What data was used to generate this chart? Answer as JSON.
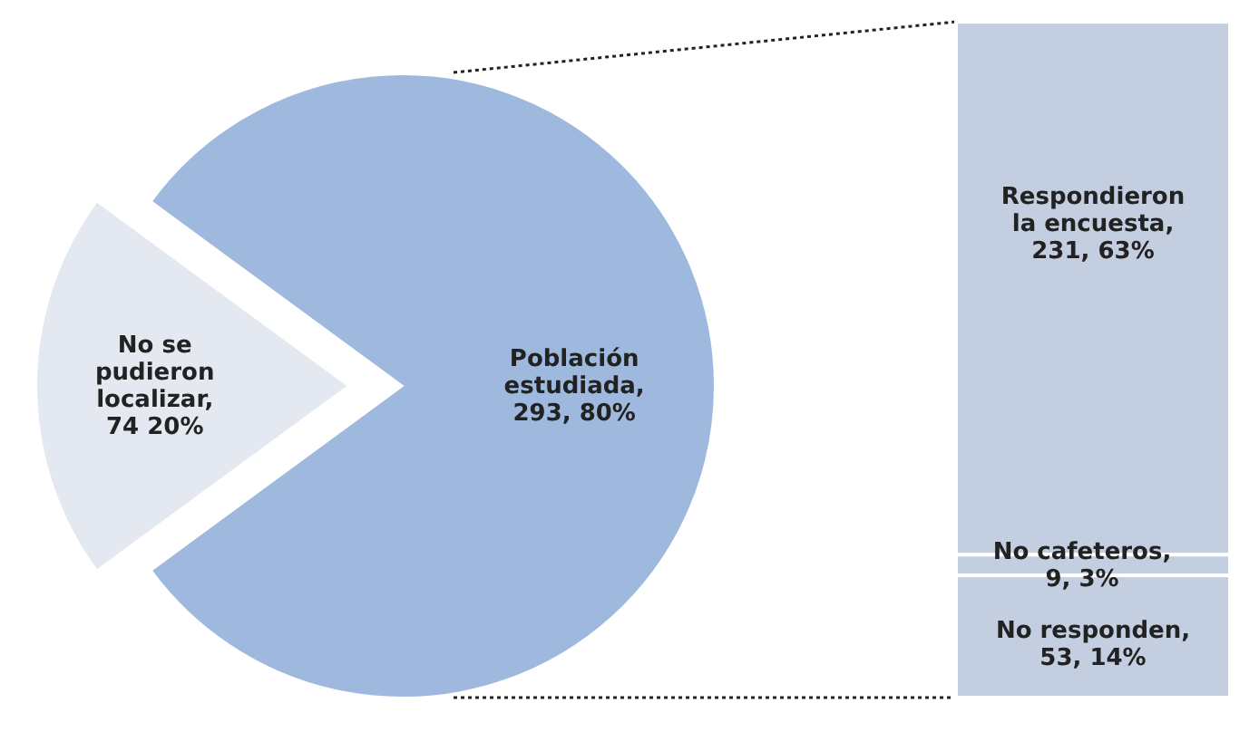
{
  "chart_data": [
    {
      "type": "pie",
      "categories": [
        "Población estudiada",
        "No se pudieron localizar"
      ],
      "values": [
        293,
        74
      ],
      "colors": [
        "#9fb9de",
        "#e4e9f1"
      ],
      "value_labels": [
        ", 293, 80%",
        ", 74 20%"
      ]
    },
    {
      "type": "bar",
      "stacked": true,
      "categories": [
        null
      ],
      "series": [
        {
          "color": "#c3cfe1",
          "values": [
            53
          ],
          "value_labels": [
            "No responden, 53, 14%"
          ]
        },
        {
          "color": "#c3cfe1",
          "values": [
            9
          ],
          "value_labels": [
            "No cafeteros, 9, 3%"
          ]
        },
        {
          "color": "#c3cfe1",
          "values": [
            231
          ],
          "value_labels": [
            "Respondieron la encuesta, 231, 63%"
          ]
        }
      ]
    }
  ]
}
